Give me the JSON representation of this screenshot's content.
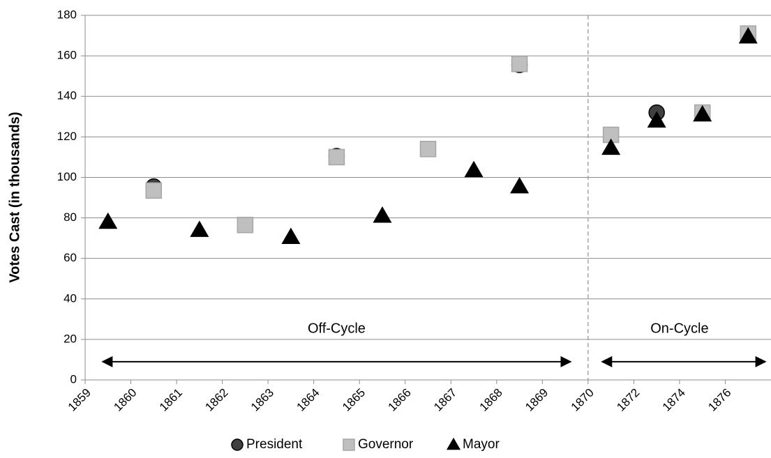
{
  "chart_data": {
    "type": "scatter",
    "y_label": "Votes Cast (in thousands)",
    "categories": [
      "1859",
      "1860",
      "1861",
      "1862",
      "1863",
      "1864",
      "1865",
      "1866",
      "1867",
      "1868",
      "1869",
      "1870",
      "1872",
      "1874",
      "1876"
    ],
    "series": [
      {
        "name": "President",
        "color": "#404040",
        "marker": "circle",
        "values": [
          null,
          95.5,
          null,
          null,
          null,
          110.5,
          null,
          null,
          null,
          155.5,
          null,
          null,
          132,
          null,
          null
        ]
      },
      {
        "name": "Governor",
        "color": "#bfbfbf",
        "marker": "square",
        "values": [
          null,
          93.5,
          null,
          76.5,
          null,
          110,
          null,
          114,
          null,
          156,
          null,
          121,
          null,
          132,
          171
        ]
      },
      {
        "name": "Mayor",
        "color": "#000000",
        "marker": "triangle",
        "values": [
          78,
          null,
          74,
          null,
          70.5,
          null,
          81,
          null,
          103.5,
          95.5,
          null,
          114.5,
          128,
          131,
          169.5
        ]
      }
    ],
    "ylim": [
      0,
      180
    ],
    "yticks": [
      0,
      20,
      40,
      60,
      80,
      100,
      120,
      140,
      160,
      180
    ],
    "grid": true,
    "legend": "bottom",
    "annotations": [
      {
        "text": "Off-Cycle"
      },
      {
        "text": "On-Cycle"
      }
    ]
  }
}
